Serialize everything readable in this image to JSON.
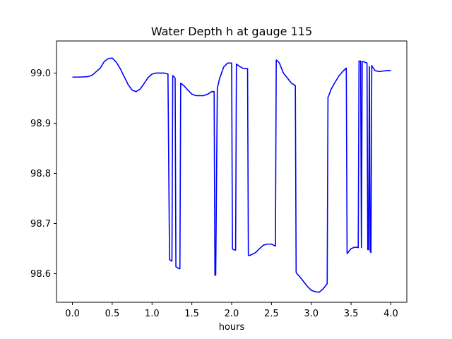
{
  "chart_data": {
    "type": "line",
    "title": "Water Depth h at gauge 115",
    "xlabel": "hours",
    "ylabel": "",
    "xlim": [
      -0.2,
      4.2
    ],
    "ylim": [
      98.543,
      99.064
    ],
    "xticks": [
      0.0,
      0.5,
      1.0,
      1.5,
      2.0,
      2.5,
      3.0,
      3.5,
      4.0
    ],
    "xtick_labels": [
      "0.0",
      "0.5",
      "1.0",
      "1.5",
      "2.0",
      "2.5",
      "3.0",
      "3.5",
      "4.0"
    ],
    "yticks": [
      98.6,
      98.7,
      98.8,
      98.9,
      99.0
    ],
    "ytick_labels": [
      "98.6",
      "98.7",
      "98.8",
      "98.9",
      "99.0"
    ],
    "grid": false,
    "series": [
      {
        "color": "#0000ff",
        "x": [
          0.0,
          0.1,
          0.2,
          0.25,
          0.3,
          0.35,
          0.4,
          0.45,
          0.5,
          0.55,
          0.6,
          0.65,
          0.7,
          0.75,
          0.8,
          0.85,
          0.9,
          0.95,
          1.0,
          1.05,
          1.1,
          1.15,
          1.2,
          1.22,
          1.23,
          1.25,
          1.26,
          1.27,
          1.29,
          1.3,
          1.34,
          1.35,
          1.36,
          1.4,
          1.45,
          1.5,
          1.55,
          1.6,
          1.65,
          1.7,
          1.75,
          1.78,
          1.79,
          1.8,
          1.82,
          1.85,
          1.9,
          1.95,
          2.0,
          2.01,
          2.02,
          2.05,
          2.06,
          2.1,
          2.15,
          2.2,
          2.21,
          2.22,
          2.25,
          2.3,
          2.35,
          2.4,
          2.45,
          2.5,
          2.55,
          2.56,
          2.57,
          2.6,
          2.65,
          2.7,
          2.75,
          2.8,
          2.81,
          2.82,
          2.85,
          2.9,
          2.95,
          3.0,
          3.05,
          3.1,
          3.15,
          3.2,
          3.21,
          3.22,
          3.25,
          3.3,
          3.35,
          3.4,
          3.44,
          3.45,
          3.46,
          3.5,
          3.55,
          3.59,
          3.6,
          3.61,
          3.62,
          3.63,
          3.64,
          3.65,
          3.7,
          3.71,
          3.72,
          3.73,
          3.74,
          3.75,
          3.76,
          3.77,
          3.8,
          3.85,
          3.9,
          3.95,
          4.0
        ],
        "y": [
          98.992,
          98.992,
          98.993,
          98.996,
          99.003,
          99.01,
          99.023,
          99.029,
          99.03,
          99.022,
          99.009,
          98.993,
          98.977,
          98.966,
          98.963,
          98.968,
          98.979,
          98.991,
          98.998,
          99.0,
          99.0,
          99.0,
          98.998,
          98.628,
          98.627,
          98.625,
          98.995,
          98.994,
          98.99,
          98.614,
          98.61,
          98.61,
          98.98,
          98.975,
          98.966,
          98.958,
          98.955,
          98.955,
          98.955,
          98.958,
          98.963,
          98.963,
          98.597,
          98.597,
          98.97,
          98.99,
          99.012,
          99.02,
          99.02,
          98.65,
          98.648,
          98.647,
          99.018,
          99.013,
          99.009,
          99.009,
          98.637,
          98.636,
          98.638,
          98.642,
          98.65,
          98.657,
          98.659,
          98.659,
          98.655,
          99.026,
          99.025,
          99.02,
          99.0,
          98.99,
          98.98,
          98.975,
          98.603,
          98.6,
          98.595,
          98.585,
          98.575,
          98.567,
          98.564,
          98.563,
          98.57,
          98.58,
          98.952,
          98.955,
          98.968,
          98.982,
          98.995,
          99.004,
          99.01,
          98.64,
          98.642,
          98.65,
          98.653,
          98.652,
          99.024,
          99.024,
          99.024,
          98.652,
          99.023,
          99.023,
          99.02,
          98.648,
          98.648,
          99.013,
          98.645,
          98.642,
          99.015,
          99.012,
          99.005,
          99.003,
          99.004,
          99.005,
          99.005
        ]
      }
    ]
  }
}
